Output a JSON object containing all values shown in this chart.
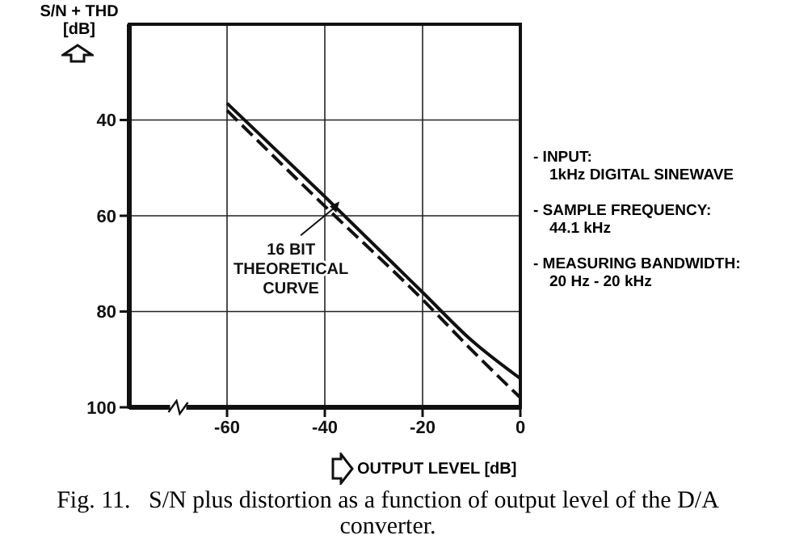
{
  "chart_data": {
    "type": "line",
    "title": "Fig. 11.   S/N plus distortion as a function of output level of the D/A converter.",
    "xlabel": "OUTPUT LEVEL [dB]",
    "ylabel": "S/N + THD\n[dB]",
    "xlim": [
      -80,
      0
    ],
    "xticks": [
      -60,
      -40,
      -20,
      0
    ],
    "ylim": [
      100,
      20
    ],
    "yticks": [
      40,
      60,
      80,
      100
    ],
    "grid": true,
    "marker": "none",
    "series": [
      {
        "color": "#111111",
        "line_style": "solid",
        "x": [
          -60,
          -40,
          -20,
          -10,
          0
        ],
        "values": [
          36.5,
          56,
          76,
          86,
          94
        ]
      },
      {
        "color": "#111111",
        "line_style": "dashed",
        "x": [
          -60,
          -40,
          -20,
          -10,
          0
        ],
        "values": [
          38,
          58,
          77.5,
          88,
          98
        ]
      }
    ],
    "annotations": [
      {
        "text": "16 BIT\nTHEORETICAL\nCURVE",
        "x": -37,
        "y": 57
      },
      "- INPUT:\n1kHz DIGITAL SINEWAVE",
      "- SAMPLE FREQUENCY:\n44.1 kHz",
      "- MEASURING BANDWIDTH:\n20 Hz - 20 kHz"
    ]
  }
}
